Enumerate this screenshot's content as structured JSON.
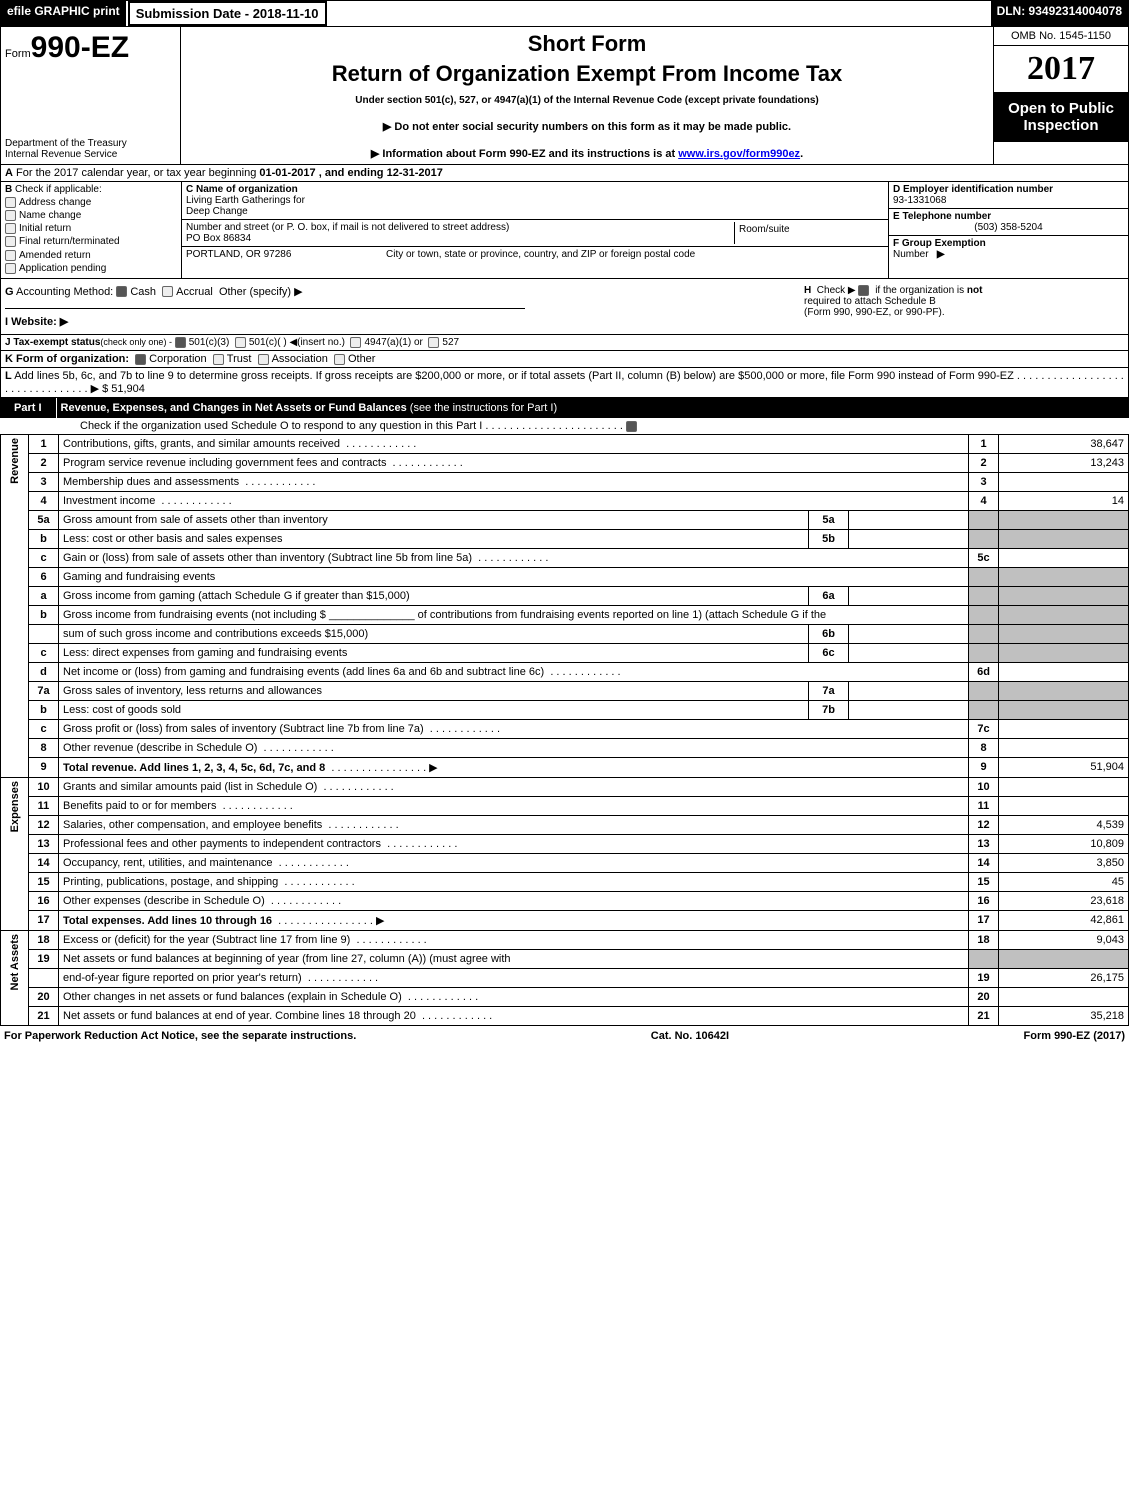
{
  "header": {
    "efile": "efile GRAPHIC print",
    "submission_date_label": "Submission Date - 2018-11-10",
    "dln": "DLN: 93492314004078"
  },
  "top": {
    "form_prefix": "Form",
    "form_number": "990-EZ",
    "dept1": "Department of the Treasury",
    "dept2": "Internal Revenue Service",
    "short_form": "Short Form",
    "return_title": "Return of Organization Exempt From Income Tax",
    "under_section": "Under section 501(c), 527, or 4947(a)(1) of the Internal Revenue Code (except private foundations)",
    "arrow1": "▶ Do not enter social security numbers on this form as it may be made public.",
    "arrow2_pre": "▶ Information about Form 990-EZ and its instructions is at ",
    "arrow2_link": "www.irs.gov/form990ez",
    "arrow2_post": ".",
    "omb": "OMB No. 1545-1150",
    "year": "2017",
    "open_public1": "Open to Public",
    "open_public2": "Inspection"
  },
  "a": {
    "label": "A",
    "text_pre": "For the 2017 calendar year, or tax year beginning ",
    "begin": "01-01-2017",
    "text_mid": ", and ending ",
    "end": "12-31-2017"
  },
  "b": {
    "label": "B",
    "check_label": "Check if applicable:",
    "opts": [
      "Address change",
      "Name change",
      "Initial return",
      "Final return/terminated",
      "Amended return",
      "Application pending"
    ]
  },
  "c": {
    "name_label": "C Name of organization",
    "name1": "Living Earth Gatherings for",
    "name2": "Deep Change",
    "addr_label": "Number and street (or P. O. box, if mail is not delivered to street address)",
    "addr": "PO Box 86834",
    "room_label": "Room/suite",
    "city_label": "City or town, state or province, country, and ZIP or foreign postal code",
    "city": "PORTLAND, OR  97286"
  },
  "d": {
    "label": "D Employer identification number",
    "value": "93-1331068"
  },
  "e": {
    "label": "E Telephone number",
    "value": "(503) 358-5204"
  },
  "f": {
    "label": "F Group Exemption",
    "label2": "Number",
    "arrow": "▶"
  },
  "g": {
    "label": "G",
    "accounting": "Accounting Method:",
    "cash": "Cash",
    "accrual": "Accrual",
    "other": "Other (specify) ▶",
    "h_label": "H",
    "h_text1": "Check ▶",
    "h_text2": "if the organization is ",
    "h_not": "not",
    "h_text3": "required to attach Schedule B",
    "h_text4": "(Form 990, 990-EZ, or 990-PF).",
    "i_label": "I Website: ▶"
  },
  "j": {
    "label": "J Tax-exempt status",
    "note": "(check only one) -",
    "o1": "501(c)(3)",
    "o2": "501(c)(  )",
    "o2b": "◀(insert no.)",
    "o3": "4947(a)(1) or",
    "o4": "527"
  },
  "k": {
    "label": "K Form of organization:",
    "o1": "Corporation",
    "o2": "Trust",
    "o3": "Association",
    "o4": "Other"
  },
  "l": {
    "label": "L",
    "text": "Add lines 5b, 6c, and 7b to line 9 to determine gross receipts. If gross receipts are $200,000 or more, or if total assets (Part II, column (B) below) are $500,000 or more, file Form 990 instead of Form 990-EZ",
    "amount": "▶ $ 51,904"
  },
  "part1": {
    "label": "Part I",
    "title": "Revenue, Expenses, and Changes in Net Assets or Fund Balances ",
    "subtitle": "(see the instructions for Part I)",
    "check_line": "Check if the organization used Schedule O to respond to any question in this Part I"
  },
  "sections": {
    "revenue": "Revenue",
    "expenses": "Expenses",
    "netassets": "Net Assets"
  },
  "lines": [
    {
      "n": "1",
      "desc": "Contributions, gifts, grants, and similar amounts received",
      "num": "1",
      "amt": "38,647"
    },
    {
      "n": "2",
      "desc": "Program service revenue including government fees and contracts",
      "num": "2",
      "amt": "13,243"
    },
    {
      "n": "3",
      "desc": "Membership dues and assessments",
      "num": "3",
      "amt": ""
    },
    {
      "n": "4",
      "desc": "Investment income",
      "num": "4",
      "amt": "14"
    },
    {
      "n": "5a",
      "desc": "Gross amount from sale of assets other than inventory",
      "sub": "5a",
      "subval": ""
    },
    {
      "n": "b",
      "desc": "Less: cost or other basis and sales expenses",
      "sub": "5b",
      "subval": ""
    },
    {
      "n": "c",
      "desc": "Gain or (loss) from sale of assets other than inventory (Subtract line 5b from line 5a)",
      "num": "5c",
      "amt": ""
    },
    {
      "n": "6",
      "desc": "Gaming and fundraising events"
    },
    {
      "n": "a",
      "desc": "Gross income from gaming (attach Schedule G if greater than $15,000)",
      "sub": "6a",
      "subval": ""
    },
    {
      "n": "b",
      "desc": "Gross income from fundraising events (not including $ ______________ of contributions from fundraising events reported on line 1) (attach Schedule G if the"
    },
    {
      "n": "",
      "desc": "sum of such gross income and contributions exceeds $15,000)",
      "sub": "6b",
      "subval": ""
    },
    {
      "n": "c",
      "desc": "Less: direct expenses from gaming and fundraising events",
      "sub": "6c",
      "subval": ""
    },
    {
      "n": "d",
      "desc": "Net income or (loss) from gaming and fundraising events (add lines 6a and 6b and subtract line 6c)",
      "num": "6d",
      "amt": ""
    },
    {
      "n": "7a",
      "desc": "Gross sales of inventory, less returns and allowances",
      "sub": "7a",
      "subval": ""
    },
    {
      "n": "b",
      "desc": "Less: cost of goods sold",
      "sub": "7b",
      "subval": ""
    },
    {
      "n": "c",
      "desc": "Gross profit or (loss) from sales of inventory (Subtract line 7b from line 7a)",
      "num": "7c",
      "amt": ""
    },
    {
      "n": "8",
      "desc": "Other revenue (describe in Schedule O)",
      "num": "8",
      "amt": ""
    },
    {
      "n": "9",
      "desc": "Total revenue. Add lines 1, 2, 3, 4, 5c, 6d, 7c, and 8",
      "num": "9",
      "amt": "51,904",
      "bold": true,
      "arrow": true
    },
    {
      "n": "10",
      "desc": "Grants and similar amounts paid (list in Schedule O)",
      "num": "10",
      "amt": ""
    },
    {
      "n": "11",
      "desc": "Benefits paid to or for members",
      "num": "11",
      "amt": ""
    },
    {
      "n": "12",
      "desc": "Salaries, other compensation, and employee benefits",
      "num": "12",
      "amt": "4,539"
    },
    {
      "n": "13",
      "desc": "Professional fees and other payments to independent contractors",
      "num": "13",
      "amt": "10,809"
    },
    {
      "n": "14",
      "desc": "Occupancy, rent, utilities, and maintenance",
      "num": "14",
      "amt": "3,850"
    },
    {
      "n": "15",
      "desc": "Printing, publications, postage, and shipping",
      "num": "15",
      "amt": "45"
    },
    {
      "n": "16",
      "desc": "Other expenses (describe in Schedule O)",
      "num": "16",
      "amt": "23,618"
    },
    {
      "n": "17",
      "desc": "Total expenses. Add lines 10 through 16",
      "num": "17",
      "amt": "42,861",
      "bold": true,
      "arrow": true
    },
    {
      "n": "18",
      "desc": "Excess or (deficit) for the year (Subtract line 17 from line 9)",
      "num": "18",
      "amt": "9,043"
    },
    {
      "n": "19",
      "desc": "Net assets or fund balances at beginning of year (from line 27, column (A)) (must agree with"
    },
    {
      "n": "",
      "desc": "end-of-year figure reported on prior year's return)",
      "num": "19",
      "amt": "26,175"
    },
    {
      "n": "20",
      "desc": "Other changes in net assets or fund balances (explain in Schedule O)",
      "num": "20",
      "amt": ""
    },
    {
      "n": "21",
      "desc": "Net assets or fund balances at end of year. Combine lines 18 through 20",
      "num": "21",
      "amt": "35,218"
    }
  ],
  "footer": {
    "left": "For Paperwork Reduction Act Notice, see the separate instructions.",
    "mid": "Cat. No. 10642I",
    "right_pre": "Form ",
    "right_form": "990-EZ",
    "right_post": " (2017)"
  }
}
